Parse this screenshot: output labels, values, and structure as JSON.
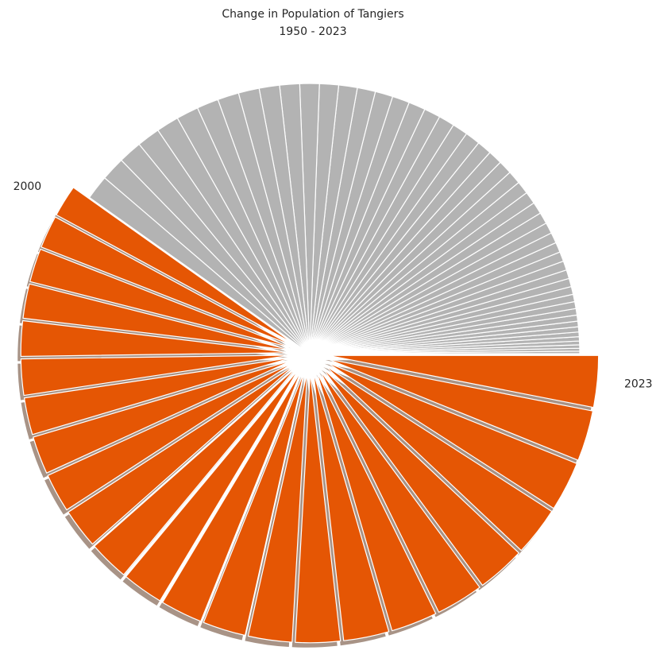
{
  "chart_data": {
    "type": "pie",
    "title": "Change in Population of Tangiers",
    "subtitle": "1950 - 2023",
    "categories": [
      null,
      null,
      null,
      null,
      null,
      null,
      null,
      null,
      null,
      null,
      null,
      null,
      null,
      null,
      null,
      null,
      null,
      null,
      null,
      null,
      null,
      null,
      null,
      null,
      null,
      null,
      null,
      null,
      null,
      null,
      null,
      null,
      null,
      null,
      null,
      null,
      null,
      null,
      null,
      null,
      null,
      null,
      null,
      null,
      null,
      null,
      null,
      null,
      null,
      null,
      "2000",
      null,
      null,
      null,
      null,
      null,
      null,
      null,
      null,
      null,
      null,
      null,
      null,
      null,
      null,
      null,
      null,
      null,
      null,
      null,
      null,
      null,
      null,
      "2023"
    ],
    "values": [
      60,
      71,
      82,
      93,
      104,
      115,
      126,
      137,
      148,
      159,
      170,
      181,
      192,
      203,
      214,
      225,
      236,
      247,
      258,
      269,
      280,
      291,
      302,
      313,
      324,
      335,
      346,
      357,
      368,
      379,
      390,
      401,
      412,
      423,
      434,
      445,
      456,
      467,
      478,
      489,
      500,
      511,
      522,
      533,
      544,
      555,
      566,
      577,
      588,
      599,
      780,
      801,
      822,
      843,
      864,
      885,
      906,
      927,
      948,
      969,
      990,
      1011,
      1032,
      1053,
      1074,
      1095,
      1116,
      1137,
      1158,
      1179,
      1200,
      1221,
      1242,
      1263
    ],
    "colors": [
      "#b3b3b3",
      "#b3b3b3",
      "#b3b3b3",
      "#b3b3b3",
      "#b3b3b3",
      "#b3b3b3",
      "#b3b3b3",
      "#b3b3b3",
      "#b3b3b3",
      "#b3b3b3",
      "#b3b3b3",
      "#b3b3b3",
      "#b3b3b3",
      "#b3b3b3",
      "#b3b3b3",
      "#b3b3b3",
      "#b3b3b3",
      "#b3b3b3",
      "#b3b3b3",
      "#b3b3b3",
      "#b3b3b3",
      "#b3b3b3",
      "#b3b3b3",
      "#b3b3b3",
      "#b3b3b3",
      "#b3b3b3",
      "#b3b3b3",
      "#b3b3b3",
      "#b3b3b3",
      "#b3b3b3",
      "#b3b3b3",
      "#b3b3b3",
      "#b3b3b3",
      "#b3b3b3",
      "#b3b3b3",
      "#b3b3b3",
      "#b3b3b3",
      "#b3b3b3",
      "#b3b3b3",
      "#b3b3b3",
      "#b3b3b3",
      "#b3b3b3",
      "#b3b3b3",
      "#b3b3b3",
      "#b3b3b3",
      "#b3b3b3",
      "#b3b3b3",
      "#b3b3b3",
      "#b3b3b3",
      "#b3b3b3",
      "#e55604",
      "#e55604",
      "#e55604",
      "#e55604",
      "#e55604",
      "#e55604",
      "#e55604",
      "#e55604",
      "#e55604",
      "#e55604",
      "#e55604",
      "#e55604",
      "#e55604",
      "#e55604",
      "#e55604",
      "#e55604",
      "#e55604",
      "#e55604",
      "#e55604",
      "#e55604",
      "#e55604",
      "#e55604",
      "#e55604",
      "#e55604"
    ],
    "explode": [
      0,
      0,
      0,
      0,
      0,
      0,
      0,
      0,
      0,
      0,
      0,
      0,
      0,
      0,
      0,
      0,
      0,
      0,
      0,
      0,
      0,
      0,
      0,
      0,
      0,
      0,
      0,
      0,
      0,
      0,
      0,
      0,
      0,
      0,
      0,
      0,
      0,
      0,
      0,
      0,
      0,
      0,
      0,
      0,
      0,
      0,
      0,
      0,
      0,
      0,
      0.07,
      0.07,
      0.07,
      0.07,
      0.07,
      0.07,
      0.07,
      0.07,
      0.07,
      0.07,
      0.07,
      0.07,
      0.07,
      0.07,
      0.07,
      0.07,
      0.07,
      0.07,
      0.07,
      0.07,
      0.07,
      0.07,
      0.07,
      0.07
    ],
    "shadow": true
  }
}
